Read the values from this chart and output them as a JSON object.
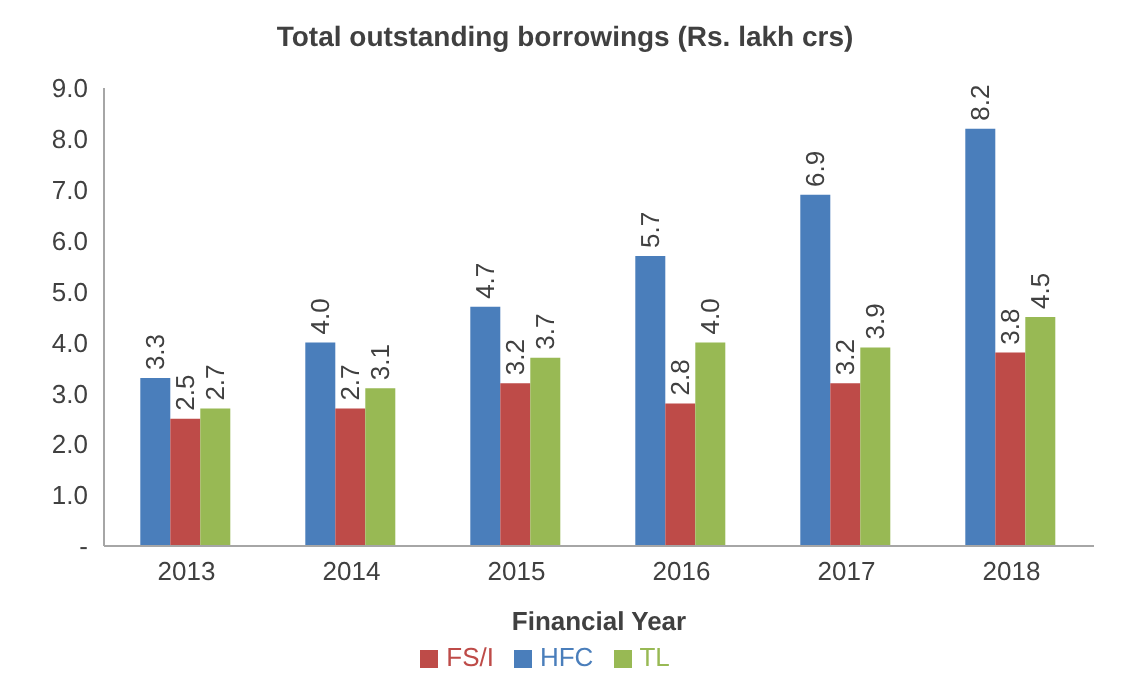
{
  "chart_data": {
    "type": "bar",
    "title": "Total outstanding borrowings (Rs. lakh crs)",
    "xlabel": "Financial Year",
    "categories": [
      "2013",
      "2014",
      "2015",
      "2016",
      "2017",
      "2018"
    ],
    "series": [
      {
        "name": "HFC",
        "color": "#4a7ebb",
        "values": [
          3.3,
          4.0,
          4.7,
          5.7,
          6.9,
          8.2
        ],
        "value_labels": [
          "3.3",
          "4.0",
          "4.7",
          "5.7",
          "6.9",
          "8.2"
        ]
      },
      {
        "name": "FS/I",
        "color": "#be4b48",
        "values": [
          2.5,
          2.7,
          3.2,
          2.8,
          3.2,
          3.8
        ],
        "value_labels": [
          "2.5",
          "2.7",
          "3.2",
          "2.8",
          "3.2",
          "3.8"
        ]
      },
      {
        "name": "TL",
        "color": "#98b954",
        "values": [
          2.7,
          3.1,
          3.7,
          4.0,
          3.9,
          4.5
        ],
        "value_labels": [
          "2.7",
          "3.1",
          "3.7",
          "4.0",
          "3.9",
          "4.5"
        ]
      }
    ],
    "ylim": [
      0,
      9
    ],
    "yticks": [
      {
        "value": 0,
        "label": "-"
      },
      {
        "value": 1,
        "label": "1.0"
      },
      {
        "value": 2,
        "label": "2.0"
      },
      {
        "value": 3,
        "label": "3.0"
      },
      {
        "value": 4,
        "label": "4.0"
      },
      {
        "value": 5,
        "label": "5.0"
      },
      {
        "value": 6,
        "label": "6.0"
      },
      {
        "value": 7,
        "label": "7.0"
      },
      {
        "value": 8,
        "label": "8.0"
      },
      {
        "value": 9,
        "label": "9.0"
      }
    ],
    "grid": false,
    "legend": "bottom"
  }
}
